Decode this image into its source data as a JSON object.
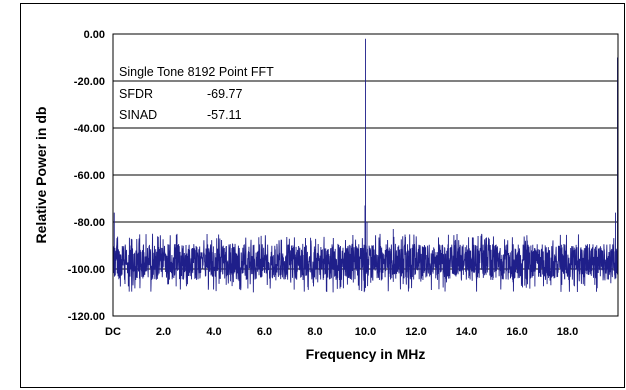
{
  "chart_data": {
    "type": "line",
    "title": "",
    "xlabel": "Frequency in MHz",
    "ylabel": "Relative Power in db",
    "xlim": [
      0,
      20
    ],
    "ylim": [
      -120,
      0
    ],
    "x_ticks": [
      {
        "value": 0,
        "label": "DC"
      },
      {
        "value": 2,
        "label": "2.0"
      },
      {
        "value": 4,
        "label": "4.0"
      },
      {
        "value": 6,
        "label": "6.0"
      },
      {
        "value": 8,
        "label": "8.0"
      },
      {
        "value": 10,
        "label": "10.0"
      },
      {
        "value": 12,
        "label": "12.0"
      },
      {
        "value": 14,
        "label": "14.0"
      },
      {
        "value": 16,
        "label": "16.0"
      },
      {
        "value": 18,
        "label": "18.0"
      }
    ],
    "y_ticks": [
      {
        "value": 0,
        "label": "0.00"
      },
      {
        "value": -20,
        "label": "-20.00"
      },
      {
        "value": -40,
        "label": "-40.00"
      },
      {
        "value": -60,
        "label": "-60.00"
      },
      {
        "value": -80,
        "label": "-80.00"
      },
      {
        "value": -100,
        "label": "-100.00"
      },
      {
        "value": -120,
        "label": "-120.00"
      }
    ],
    "grid": "horizontal",
    "line_color": "#1f1f8a",
    "noise_floor_db": -97,
    "noise_band_db": [
      -110,
      -88
    ],
    "spurs": [
      {
        "x": 0.0,
        "y": -10
      },
      {
        "x": 0.05,
        "y": -76
      },
      {
        "x": 10.0,
        "y": -2
      },
      {
        "x": 9.98,
        "y": -73
      },
      {
        "x": 10.06,
        "y": -80
      },
      {
        "x": 11.1,
        "y": -83
      },
      {
        "x": 19.98,
        "y": -10
      },
      {
        "x": 19.9,
        "y": -76
      }
    ],
    "annotation": {
      "heading": "Single Tone 8192 Point FFT",
      "rows": [
        {
          "label": "SFDR",
          "value": "-69.77"
        },
        {
          "label": "SINAD",
          "value": "-57.11"
        }
      ]
    }
  }
}
